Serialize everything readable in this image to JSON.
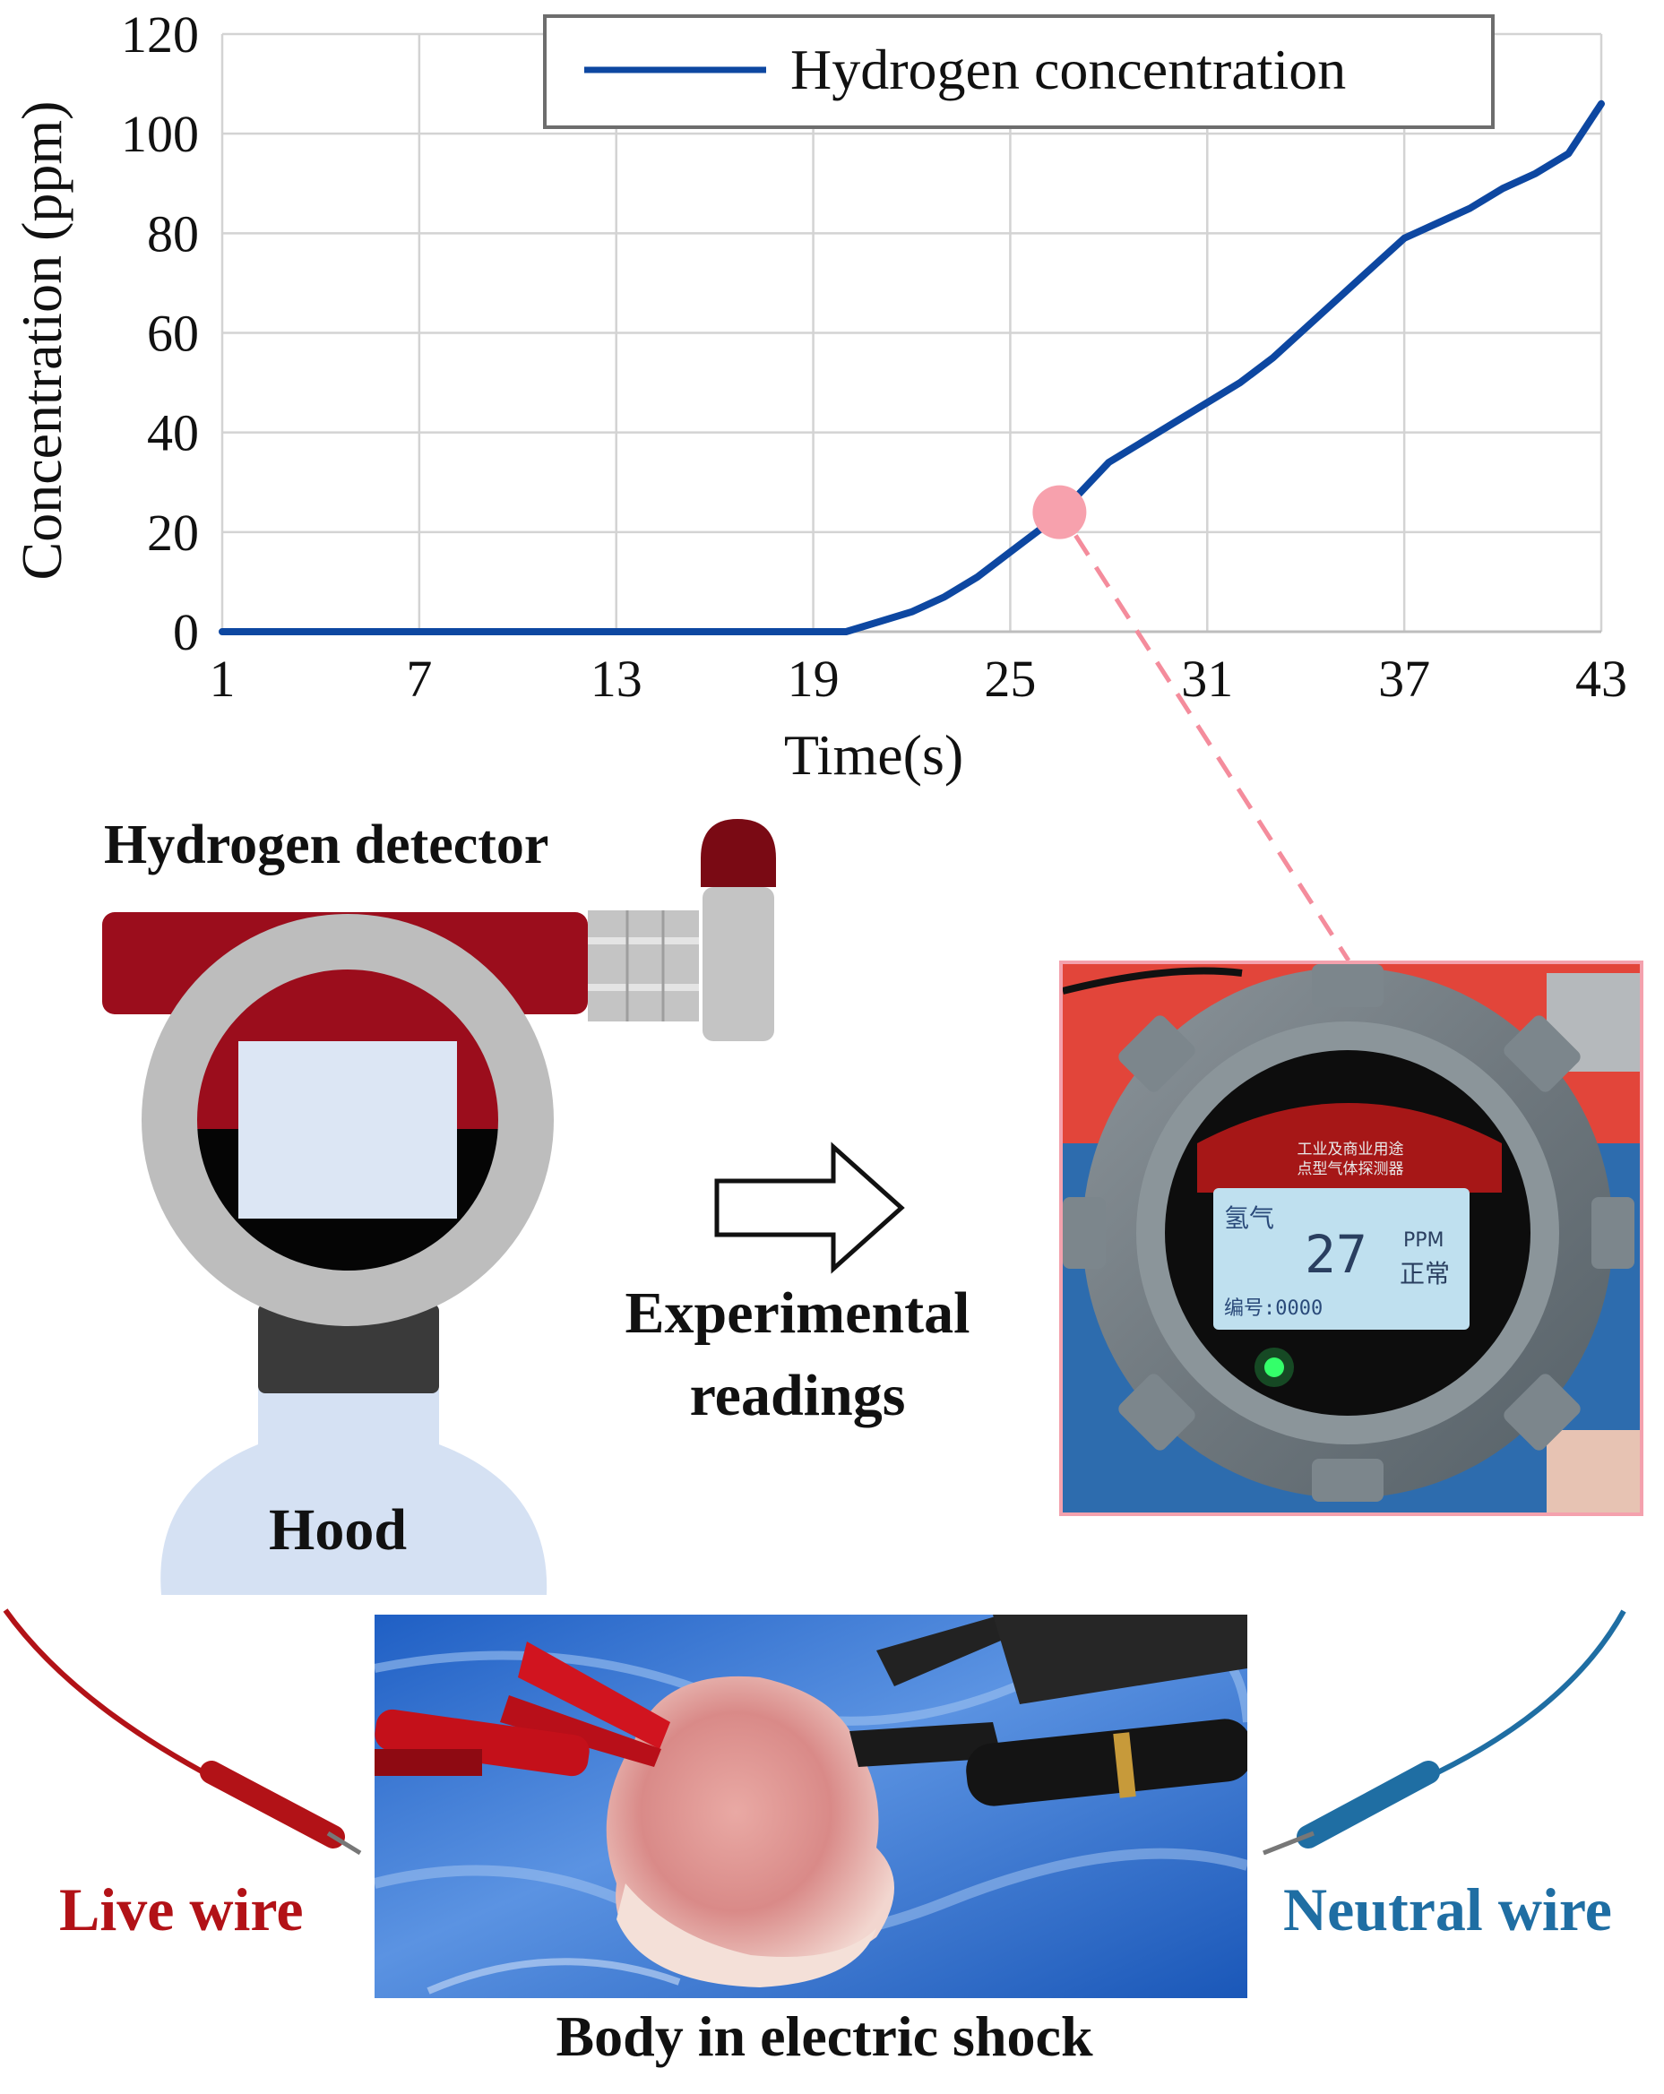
{
  "chart_data": {
    "type": "line",
    "xlabel": "Time(s)",
    "ylabel": "Concentration (ppm)",
    "x_tick_labels": [
      "1",
      "7",
      "13",
      "19",
      "25",
      "31",
      "37",
      "43"
    ],
    "y_tick_labels": [
      "0",
      "20",
      "40",
      "60",
      "80",
      "100",
      "120"
    ],
    "xlim": [
      1,
      43
    ],
    "ylim": [
      0,
      120
    ],
    "grid": true,
    "legend_position": "top-right",
    "series": [
      {
        "name": "Hydrogen concentration",
        "color": "#0d47a1",
        "x": [
          1,
          2,
          3,
          4,
          5,
          6,
          7,
          8,
          9,
          10,
          11,
          12,
          13,
          14,
          15,
          16,
          17,
          18,
          19,
          20,
          21,
          22,
          23,
          24,
          25,
          26,
          27,
          28,
          29,
          30,
          31,
          32,
          33,
          34,
          35,
          36,
          37,
          38,
          39,
          40,
          41,
          42,
          43
        ],
        "y": [
          0,
          0,
          0,
          0,
          0,
          0,
          0,
          0,
          0,
          0,
          0,
          0,
          0,
          0,
          0,
          0,
          0,
          0,
          0,
          0,
          2,
          4,
          7,
          11,
          16,
          21,
          27,
          34,
          38,
          42,
          46,
          50,
          55,
          61,
          67,
          73,
          79,
          82,
          85,
          89,
          92,
          96,
          106
        ]
      }
    ],
    "highlight": {
      "x": 26.5,
      "y": 24,
      "color": "#f7a1ad"
    }
  },
  "illustration": {
    "detector_label": "Hydrogen detector",
    "hood_label": "Hood",
    "readings_label": "Experimental readings",
    "readings_label_line1": "Experimental",
    "readings_label_line2": "readings",
    "live_wire_label": "Live wire",
    "neutral_wire_label": "Neutral wire",
    "body_label": "Body in electric shock",
    "colors": {
      "detector_red": "#9b0d1c",
      "detector_dark_red": "#7a0a14",
      "detector_grey": "#c0c0c0",
      "screen": "#dce6f4",
      "hood": "#d5e1f3",
      "live_wire": "#b21217",
      "neutral_wire": "#1f6ea3",
      "photo_border": "#f4a1ad"
    }
  },
  "detector_screen": {
    "header_line1": "工业及商业用途",
    "header_line2": "点型气体探测器",
    "gas": "氢气",
    "value": "27",
    "unit": "PPM",
    "status": "正常",
    "id_text": "编号:0000"
  }
}
